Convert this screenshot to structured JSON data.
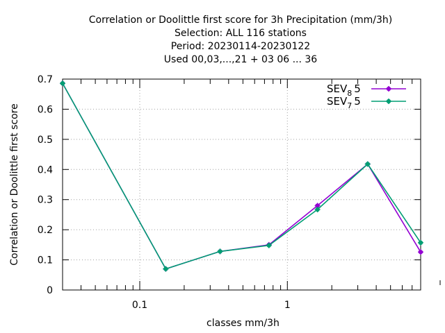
{
  "chart_data": {
    "type": "line",
    "title_lines": [
      "Correlation or Doolittle first score  for 3h Precipitation (mm/3h)",
      "Selection: ALL    116 stations",
      "Period: 20230114-20230122",
      "Used  00,03,...,21  + 03 06 ... 36"
    ],
    "xlabel": "classes mm/3h",
    "ylabel": "Correlation or Doolittle first score",
    "xscale": "log",
    "xlim": [
      0.03,
      8
    ],
    "ylim": [
      0,
      0.7
    ],
    "yticks": [
      "0",
      "0.1",
      "0.2",
      "0.3",
      "0.4",
      "0.5",
      "0.6",
      "0.7"
    ],
    "xticks": [
      {
        "value": 0.1,
        "label": "0.1"
      },
      {
        "value": 1,
        "label": "1"
      }
    ],
    "grid": true,
    "legend_position": "top-right",
    "series": [
      {
        "name_base": "SEV",
        "name_sub": "8",
        "name_tail": "5",
        "color": "#9400d3",
        "x": [
          0.03,
          0.15,
          0.35,
          0.75,
          1.6,
          3.5,
          8.0
        ],
        "y": [
          0.686,
          0.07,
          0.128,
          0.15,
          0.28,
          0.418,
          0.126
        ]
      },
      {
        "name_base": "SEV",
        "name_sub": "7",
        "name_tail": "5",
        "color": "#009e73",
        "x": [
          0.03,
          0.15,
          0.35,
          0.75,
          1.6,
          3.5,
          8.0
        ],
        "y": [
          0.686,
          0.07,
          0.128,
          0.148,
          0.267,
          0.418,
          0.157
        ]
      }
    ]
  }
}
